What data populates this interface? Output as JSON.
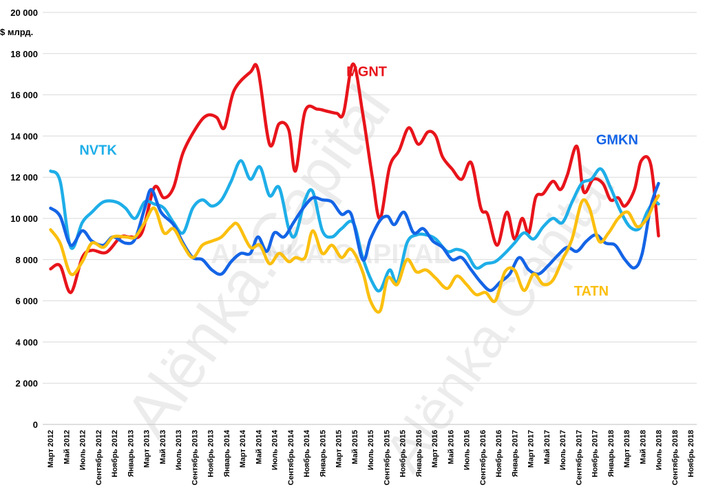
{
  "watermark": {
    "main_text": "Alёnka.Capital",
    "center_text": "ALЁNKA.CAPITAL"
  },
  "chart_data": {
    "type": "line",
    "ylabel": "$ млрд.",
    "ylim": [
      0,
      20000
    ],
    "yticks": [
      0,
      2000,
      4000,
      6000,
      8000,
      10000,
      12000,
      14000,
      16000,
      18000,
      20000
    ],
    "ytick_labels": [
      "0",
      "2 000",
      "4 000",
      "6 000",
      "8 000",
      "10 000",
      "12 000",
      "14 000",
      "16 000",
      "18 000",
      "20 000"
    ],
    "grid": true,
    "legend": "inline labels",
    "x_tick_labels": [
      "Март 2012",
      "Май 2012",
      "Июль 2012",
      "Сентябрь 2012",
      "Ноябрь 2012",
      "Январь 2013",
      "Март 2013",
      "Май 2013",
      "Июль 2013",
      "Сентябрь 2013",
      "Ноябрь 2013",
      "Январь 2014",
      "Март 2014",
      "Май 2014",
      "Июль 2014",
      "Сентябрь 2014",
      "Ноябрь 2014",
      "Январь 2015",
      "Март 2015",
      "Май 2015",
      "Июль 2015",
      "Сентябрь 2015",
      "Ноябрь 2015",
      "Январь 2016",
      "Март 2016",
      "Май 2016",
      "Июль 2016",
      "Сентябрь 2016",
      "Ноябрь 2016",
      "Январь 2017",
      "Март 2017",
      "Май 2017",
      "Июль 2017",
      "Сентябрь 2017",
      "Ноябрь 2017",
      "Январь 2018",
      "Март 2018",
      "Май 2018",
      "Июль 2018",
      "Сентябрь 2018",
      "Ноябрь 2018"
    ],
    "x_start": "2012-03",
    "series": [
      {
        "name": "MGNT",
        "color": "#e8141b",
        "label_at": [
          2015.25,
          16900
        ],
        "points": [
          [
            2012.17,
            7550
          ],
          [
            2012.27,
            7700
          ],
          [
            2012.38,
            6400
          ],
          [
            2012.5,
            8100
          ],
          [
            2012.6,
            8450
          ],
          [
            2012.75,
            8350
          ],
          [
            2012.9,
            9100
          ],
          [
            2013.0,
            9100
          ],
          [
            2013.12,
            9300
          ],
          [
            2013.25,
            11500
          ],
          [
            2013.35,
            11000
          ],
          [
            2013.45,
            11500
          ],
          [
            2013.55,
            13200
          ],
          [
            2013.7,
            14500
          ],
          [
            2013.8,
            15000
          ],
          [
            2013.9,
            14900
          ],
          [
            2013.98,
            14400
          ],
          [
            2014.08,
            16200
          ],
          [
            2014.25,
            17100
          ],
          [
            2014.33,
            17200
          ],
          [
            2014.45,
            13600
          ],
          [
            2014.55,
            14600
          ],
          [
            2014.65,
            14300
          ],
          [
            2014.72,
            12300
          ],
          [
            2014.82,
            15200
          ],
          [
            2014.95,
            15300
          ],
          [
            2015.05,
            15200
          ],
          [
            2015.15,
            15100
          ],
          [
            2015.22,
            15100
          ],
          [
            2015.32,
            17500
          ],
          [
            2015.42,
            15100
          ],
          [
            2015.52,
            12000
          ],
          [
            2015.6,
            10000
          ],
          [
            2015.7,
            12500
          ],
          [
            2015.8,
            13300
          ],
          [
            2015.9,
            14400
          ],
          [
            2016.0,
            13600
          ],
          [
            2016.1,
            14200
          ],
          [
            2016.18,
            14000
          ],
          [
            2016.25,
            13000
          ],
          [
            2016.35,
            12400
          ],
          [
            2016.45,
            11900
          ],
          [
            2016.55,
            12700
          ],
          [
            2016.65,
            10500
          ],
          [
            2016.72,
            10200
          ],
          [
            2016.82,
            8700
          ],
          [
            2016.92,
            10300
          ],
          [
            2017.0,
            9000
          ],
          [
            2017.08,
            10000
          ],
          [
            2017.15,
            9300
          ],
          [
            2017.22,
            11000
          ],
          [
            2017.3,
            11200
          ],
          [
            2017.4,
            11800
          ],
          [
            2017.48,
            11400
          ],
          [
            2017.55,
            12100
          ],
          [
            2017.65,
            13500
          ],
          [
            2017.72,
            11300
          ],
          [
            2017.82,
            11900
          ],
          [
            2017.92,
            11700
          ],
          [
            2018.0,
            10900
          ],
          [
            2018.08,
            11000
          ],
          [
            2018.15,
            10600
          ],
          [
            2018.25,
            11400
          ],
          [
            2018.32,
            12800
          ],
          [
            2018.42,
            12600
          ],
          [
            2018.5,
            9150
          ]
        ]
      },
      {
        "name": "NVTK",
        "color": "#1eaee8",
        "label_at": [
          2012.47,
          13100
        ],
        "points": [
          [
            2012.17,
            12300
          ],
          [
            2012.27,
            11800
          ],
          [
            2012.38,
            8600
          ],
          [
            2012.5,
            9800
          ],
          [
            2012.6,
            10300
          ],
          [
            2012.72,
            10800
          ],
          [
            2012.85,
            10800
          ],
          [
            2012.95,
            10500
          ],
          [
            2013.05,
            10000
          ],
          [
            2013.15,
            10800
          ],
          [
            2013.25,
            10700
          ],
          [
            2013.35,
            10500
          ],
          [
            2013.45,
            9800
          ],
          [
            2013.55,
            9300
          ],
          [
            2013.65,
            10500
          ],
          [
            2013.75,
            10900
          ],
          [
            2013.85,
            10600
          ],
          [
            2013.95,
            10900
          ],
          [
            2014.05,
            11800
          ],
          [
            2014.15,
            12800
          ],
          [
            2014.25,
            11900
          ],
          [
            2014.35,
            12500
          ],
          [
            2014.45,
            11100
          ],
          [
            2014.55,
            11500
          ],
          [
            2014.65,
            9500
          ],
          [
            2014.72,
            9200
          ],
          [
            2014.82,
            10900
          ],
          [
            2014.9,
            11300
          ],
          [
            2015.0,
            9400
          ],
          [
            2015.1,
            9100
          ],
          [
            2015.2,
            9500
          ],
          [
            2015.32,
            9800
          ],
          [
            2015.42,
            8100
          ],
          [
            2015.52,
            6900
          ],
          [
            2015.6,
            6500
          ],
          [
            2015.7,
            7500
          ],
          [
            2015.78,
            6900
          ],
          [
            2015.88,
            8800
          ],
          [
            2015.98,
            9200
          ],
          [
            2016.08,
            9200
          ],
          [
            2016.18,
            9000
          ],
          [
            2016.3,
            8400
          ],
          [
            2016.4,
            8500
          ],
          [
            2016.5,
            8300
          ],
          [
            2016.6,
            7600
          ],
          [
            2016.7,
            7800
          ],
          [
            2016.8,
            7900
          ],
          [
            2016.9,
            8300
          ],
          [
            2017.0,
            8800
          ],
          [
            2017.1,
            9300
          ],
          [
            2017.2,
            9000
          ],
          [
            2017.3,
            9600
          ],
          [
            2017.4,
            10000
          ],
          [
            2017.5,
            9800
          ],
          [
            2017.6,
            10800
          ],
          [
            2017.7,
            11700
          ],
          [
            2017.8,
            11900
          ],
          [
            2017.9,
            12400
          ],
          [
            2018.0,
            11500
          ],
          [
            2018.1,
            10400
          ],
          [
            2018.2,
            9600
          ],
          [
            2018.3,
            9500
          ],
          [
            2018.38,
            10300
          ],
          [
            2018.45,
            10800
          ],
          [
            2018.5,
            10700
          ]
        ]
      },
      {
        "name": "GMKN",
        "color": "#1464e6",
        "label_at": [
          2017.85,
          13600
        ],
        "points": [
          [
            2012.17,
            10500
          ],
          [
            2012.27,
            10100
          ],
          [
            2012.38,
            8700
          ],
          [
            2012.5,
            9400
          ],
          [
            2012.6,
            8900
          ],
          [
            2012.72,
            8700
          ],
          [
            2012.82,
            9100
          ],
          [
            2012.95,
            8800
          ],
          [
            2013.05,
            9000
          ],
          [
            2013.15,
            10500
          ],
          [
            2013.22,
            11400
          ],
          [
            2013.32,
            10300
          ],
          [
            2013.45,
            9700
          ],
          [
            2013.55,
            8800
          ],
          [
            2013.65,
            8100
          ],
          [
            2013.75,
            8000
          ],
          [
            2013.85,
            7500
          ],
          [
            2013.95,
            7300
          ],
          [
            2014.05,
            7900
          ],
          [
            2014.15,
            8300
          ],
          [
            2014.25,
            8300
          ],
          [
            2014.33,
            9100
          ],
          [
            2014.42,
            8400
          ],
          [
            2014.5,
            9300
          ],
          [
            2014.6,
            9100
          ],
          [
            2014.7,
            9800
          ],
          [
            2014.8,
            10500
          ],
          [
            2014.9,
            11000
          ],
          [
            2015.0,
            10900
          ],
          [
            2015.1,
            10800
          ],
          [
            2015.2,
            10200
          ],
          [
            2015.3,
            10200
          ],
          [
            2015.42,
            8000
          ],
          [
            2015.5,
            9000
          ],
          [
            2015.6,
            9900
          ],
          [
            2015.68,
            10100
          ],
          [
            2015.75,
            9700
          ],
          [
            2015.85,
            10300
          ],
          [
            2015.95,
            9300
          ],
          [
            2016.05,
            9500
          ],
          [
            2016.15,
            8900
          ],
          [
            2016.25,
            8600
          ],
          [
            2016.35,
            8000
          ],
          [
            2016.45,
            8100
          ],
          [
            2016.55,
            7500
          ],
          [
            2016.65,
            6900
          ],
          [
            2016.75,
            6500
          ],
          [
            2016.85,
            6900
          ],
          [
            2016.95,
            7300
          ],
          [
            2017.05,
            8100
          ],
          [
            2017.15,
            7500
          ],
          [
            2017.25,
            7300
          ],
          [
            2017.35,
            7700
          ],
          [
            2017.45,
            8200
          ],
          [
            2017.55,
            8600
          ],
          [
            2017.65,
            8400
          ],
          [
            2017.75,
            8900
          ],
          [
            2017.85,
            9200
          ],
          [
            2017.95,
            8800
          ],
          [
            2018.05,
            8700
          ],
          [
            2018.15,
            8000
          ],
          [
            2018.25,
            7600
          ],
          [
            2018.33,
            8300
          ],
          [
            2018.42,
            10600
          ],
          [
            2018.5,
            11700
          ]
        ]
      },
      {
        "name": "TATN",
        "color": "#fbbf0f",
        "label_at": [
          2017.62,
          6250
        ],
        "points": [
          [
            2012.17,
            9450
          ],
          [
            2012.27,
            8800
          ],
          [
            2012.38,
            7300
          ],
          [
            2012.5,
            7900
          ],
          [
            2012.6,
            8800
          ],
          [
            2012.72,
            8600
          ],
          [
            2012.82,
            9100
          ],
          [
            2012.95,
            9100
          ],
          [
            2013.05,
            9100
          ],
          [
            2013.15,
            9800
          ],
          [
            2013.25,
            10500
          ],
          [
            2013.35,
            9300
          ],
          [
            2013.45,
            9500
          ],
          [
            2013.55,
            8700
          ],
          [
            2013.65,
            8100
          ],
          [
            2013.75,
            8700
          ],
          [
            2013.85,
            8900
          ],
          [
            2013.95,
            9100
          ],
          [
            2014.05,
            9600
          ],
          [
            2014.12,
            9700
          ],
          [
            2014.25,
            8600
          ],
          [
            2014.35,
            8700
          ],
          [
            2014.45,
            7800
          ],
          [
            2014.55,
            8300
          ],
          [
            2014.65,
            7900
          ],
          [
            2014.72,
            8100
          ],
          [
            2014.82,
            8100
          ],
          [
            2014.9,
            9400
          ],
          [
            2015.0,
            8300
          ],
          [
            2015.1,
            8700
          ],
          [
            2015.2,
            8100
          ],
          [
            2015.3,
            8500
          ],
          [
            2015.42,
            7400
          ],
          [
            2015.5,
            6000
          ],
          [
            2015.6,
            5500
          ],
          [
            2015.68,
            7100
          ],
          [
            2015.78,
            6800
          ],
          [
            2015.88,
            8000
          ],
          [
            2015.98,
            7400
          ],
          [
            2016.08,
            7500
          ],
          [
            2016.18,
            7100
          ],
          [
            2016.3,
            6600
          ],
          [
            2016.4,
            7200
          ],
          [
            2016.5,
            6800
          ],
          [
            2016.6,
            6300
          ],
          [
            2016.7,
            6400
          ],
          [
            2016.8,
            6000
          ],
          [
            2016.9,
            7400
          ],
          [
            2017.0,
            7500
          ],
          [
            2017.1,
            6500
          ],
          [
            2017.2,
            7300
          ],
          [
            2017.3,
            6800
          ],
          [
            2017.4,
            7000
          ],
          [
            2017.5,
            8000
          ],
          [
            2017.6,
            9000
          ],
          [
            2017.7,
            10800
          ],
          [
            2017.78,
            10500
          ],
          [
            2017.88,
            8900
          ],
          [
            2017.98,
            9300
          ],
          [
            2018.08,
            10000
          ],
          [
            2018.18,
            10300
          ],
          [
            2018.28,
            9600
          ],
          [
            2018.38,
            10000
          ],
          [
            2018.45,
            10700
          ],
          [
            2018.5,
            11100
          ]
        ]
      }
    ]
  }
}
